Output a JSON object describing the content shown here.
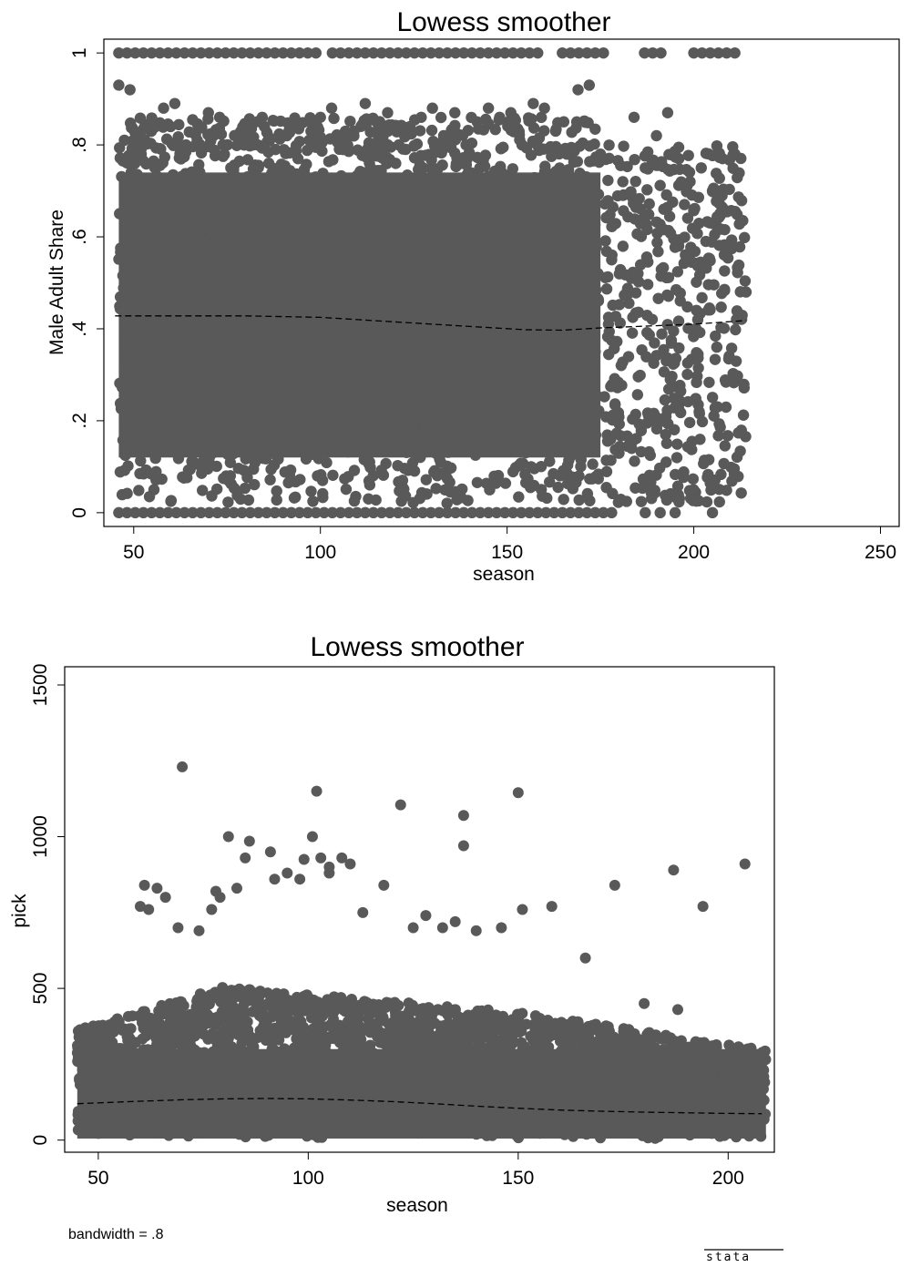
{
  "chart_data": [
    {
      "type": "scatter",
      "title": "Lowess smoother",
      "xlabel": "season",
      "ylabel": "Male Adult Share",
      "xlim": [
        42,
        255
      ],
      "ylim": [
        -0.03,
        1.03
      ],
      "xticks": [
        50,
        100,
        150,
        200,
        250
      ],
      "xtick_labels": [
        "50",
        "100",
        "150",
        "200",
        "250"
      ],
      "yticks": [
        0,
        0.2,
        0.4,
        0.6,
        0.8,
        1
      ],
      "ytick_labels": [
        "0",
        ".2",
        ".4",
        ".6",
        ".8",
        "1"
      ],
      "point_color": "#595959",
      "line_color": "#000000",
      "series": [
        {
          "type": "scatter",
          "x": [
            46,
            49,
            52,
            55,
            58,
            61,
            64,
            67,
            70,
            73,
            76,
            79,
            82,
            85,
            88,
            91,
            94,
            97,
            100,
            103,
            106,
            109,
            112,
            115,
            118,
            121,
            124,
            127,
            130,
            133,
            136,
            139,
            142,
            145,
            148,
            151,
            154,
            157,
            160,
            163,
            166,
            169,
            172,
            175,
            178,
            181,
            184,
            187,
            190,
            193,
            196,
            199,
            202,
            205,
            208,
            211,
            214
          ],
          "y": [
            0.93,
            0.92,
            0.78,
            0.85,
            0.88,
            0.89,
            0.8,
            0.81,
            0.87,
            0.86,
            0.75,
            0.82,
            0.8,
            0.84,
            0.79,
            0.82,
            0.77,
            0.81,
            0.86,
            0.88,
            0.79,
            0.83,
            0.89,
            0.85,
            0.87,
            0.8,
            0.84,
            0.86,
            0.88,
            0.82,
            0.87,
            0.8,
            0.85,
            0.88,
            0.86,
            0.87,
            0.8,
            0.89,
            0.88,
            0.83,
            0.78,
            0.92,
            0.93,
            0.78,
            0.55,
            0.72,
            0.86,
            0.75,
            0.82,
            0.87,
            0.77,
            0.72,
            0.75,
            0.7,
            0.66,
            0.78,
            0.48
          ]
        },
        {
          "type": "lowess",
          "name": "",
          "x": [
            45,
            60,
            80,
            100,
            110,
            120,
            140,
            155,
            165,
            175,
            185,
            200,
            214
          ],
          "y": [
            0.428,
            0.428,
            0.428,
            0.425,
            0.42,
            0.415,
            0.405,
            0.398,
            0.397,
            0.402,
            0.405,
            0.41,
            0.418
          ]
        }
      ],
      "annotation": ""
    },
    {
      "type": "scatter",
      "title": "Lowess smoother",
      "xlabel": "season",
      "ylabel": "pick",
      "xlim": [
        42,
        211
      ],
      "ylim": [
        -40,
        1560
      ],
      "xticks": [
        50,
        100,
        150,
        200
      ],
      "xtick_labels": [
        "50",
        "100",
        "150",
        "200"
      ],
      "yticks": [
        0,
        500,
        1000,
        1500
      ],
      "ytick_labels": [
        "0",
        "500",
        "1000",
        "1500"
      ],
      "point_color": "#595959",
      "line_color": "#000000",
      "series": [
        {
          "type": "scatter",
          "x": [
            70,
            102,
            122,
            137,
            150,
            137,
            81,
            101,
            86,
            91,
            99,
            103,
            105,
            108,
            110,
            85,
            78,
            77,
            61,
            60,
            62,
            64,
            66,
            69,
            74,
            79,
            83,
            92,
            95,
            98,
            105,
            113,
            118,
            125,
            128,
            132,
            135,
            140,
            146,
            151,
            158,
            166,
            173,
            187,
            194,
            204,
            180,
            188
          ],
          "y": [
            1230,
            1150,
            1105,
            1070,
            1145,
            970,
            1000,
            1000,
            985,
            950,
            925,
            930,
            900,
            930,
            910,
            930,
            820,
            760,
            840,
            770,
            760,
            830,
            800,
            700,
            690,
            800,
            830,
            860,
            880,
            860,
            880,
            750,
            840,
            700,
            740,
            700,
            720,
            690,
            700,
            760,
            770,
            600,
            840,
            890,
            770,
            910,
            450,
            430
          ]
        },
        {
          "type": "lowess",
          "name": "",
          "x": [
            45,
            60,
            70,
            80,
            90,
            100,
            110,
            120,
            130,
            140,
            150,
            160,
            170,
            180,
            190,
            200,
            208
          ],
          "y": [
            120,
            128,
            133,
            136,
            137,
            136,
            132,
            127,
            120,
            112,
            105,
            99,
            95,
            92,
            90,
            88,
            87
          ]
        }
      ],
      "annotation": "bandwidth = .8"
    }
  ],
  "footer": {
    "logo_text": "stata"
  }
}
